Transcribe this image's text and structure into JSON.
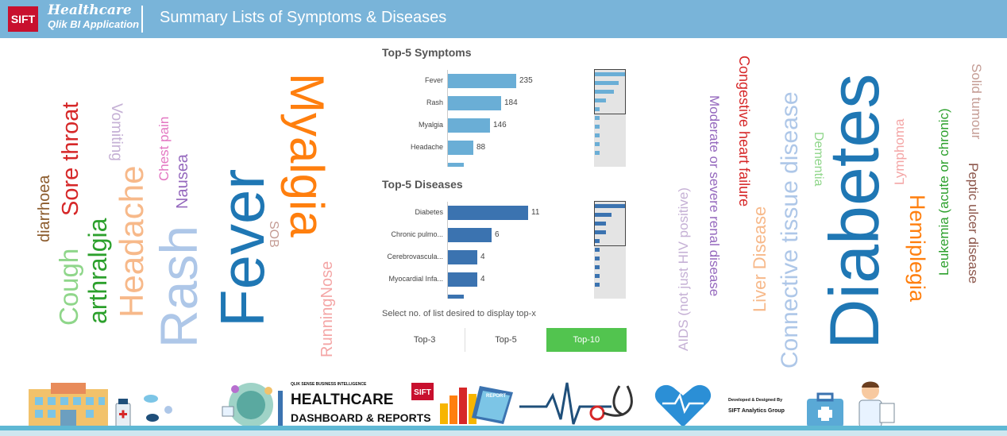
{
  "header": {
    "logo": "SIFT",
    "app_line1": "Healthcare",
    "app_line2": "Qlik BI Application",
    "title": "Summary Lists of Symptoms & Diseases"
  },
  "symptom_cloud": [
    {
      "text": "diarrhoea",
      "color": "#8b5a2b"
    },
    {
      "text": "Cough",
      "color": "#8fd68a"
    },
    {
      "text": "Sore throat",
      "color": "#d62728"
    },
    {
      "text": "arthralgia",
      "color": "#2ca02c"
    },
    {
      "text": "Vomiting",
      "color": "#c5b0d5"
    },
    {
      "text": "Headache",
      "color": "#f7b98a"
    },
    {
      "text": "Chest pain",
      "color": "#e377c2"
    },
    {
      "text": "Nausea",
      "color": "#9467bd"
    },
    {
      "text": "Rash",
      "color": "#aec7e8"
    },
    {
      "text": "Fever",
      "color": "#1f77b4"
    },
    {
      "text": "Myalgia",
      "color": "#ff7f0e"
    },
    {
      "text": "SOB",
      "color": "#c49c94"
    },
    {
      "text": "RunningNose",
      "color": "#f4a6a6"
    }
  ],
  "disease_cloud": [
    {
      "text": "AIDS (not just HIV positive)",
      "color": "#c5b0d5"
    },
    {
      "text": "Moderate or severe renal disease",
      "color": "#9467bd"
    },
    {
      "text": "Congestive heart failure",
      "color": "#d62728"
    },
    {
      "text": "Liver Disease",
      "color": "#f7b98a"
    },
    {
      "text": "Connective tissue disease",
      "color": "#aec7e8"
    },
    {
      "text": "Dementia",
      "color": "#8fd68a"
    },
    {
      "text": "Diabetes",
      "color": "#1f77b4"
    },
    {
      "text": "Lymphoma",
      "color": "#f4a6a6"
    },
    {
      "text": "Hemiplegia",
      "color": "#ff7f0e"
    },
    {
      "text": "Leukemia (acute or chronic)",
      "color": "#2ca02c"
    },
    {
      "text": "Solid tumour",
      "color": "#c49c94"
    },
    {
      "text": "Peptic ulcer disease",
      "color": "#8c564b"
    }
  ],
  "symptoms_chart": {
    "title": "Top-5 Symptoms",
    "categories": [
      "Fever",
      "Rash",
      "Myalgia",
      "Headache"
    ],
    "values": [
      235,
      184,
      146,
      88
    ],
    "color": "#6aaed6"
  },
  "diseases_chart": {
    "title": "Top-5 Diseases",
    "categories": [
      "Diabetes",
      "Chronic pulmo...",
      "Cerebrovascula...",
      "Myocardial Infa..."
    ],
    "values": [
      11,
      6,
      4,
      4
    ],
    "color": "#3b73b0"
  },
  "selector": {
    "hint": "Select no. of list desired to display top-x",
    "options": [
      "Top-3",
      "Top-5",
      "Top-10"
    ],
    "selected": "Top-10"
  },
  "footer": {
    "small": "QLIK SENSE BUSINESS INTELLIGENCE",
    "big1": "HEALTHCARE",
    "big2": "DASHBOARD & REPORTS",
    "logo": "SIFT",
    "report": "REPORT",
    "credit1": "Developed & Designed By",
    "credit2": "SIFT Analytics Group"
  }
}
